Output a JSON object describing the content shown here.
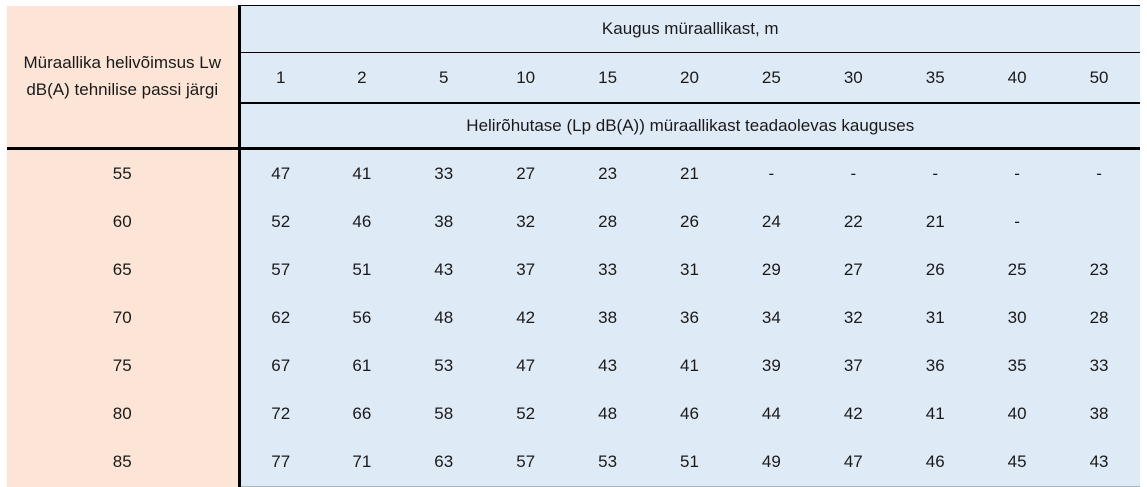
{
  "colors": {
    "left_column_bg": "#fce4d6",
    "data_area_bg": "#deeaf6",
    "border": "#000000",
    "text": "#1a1a1a"
  },
  "chart_data": {
    "type": "table",
    "corner_header": "Müraallika helivõimsus Lw dB(A) tehnilise passi järgi",
    "group_header": "Kaugus müraallikast, m",
    "columns": [
      "1",
      "2",
      "5",
      "10",
      "15",
      "20",
      "25",
      "30",
      "35",
      "40",
      "50"
    ],
    "sub_header": "Helirõhutase (Lp dB(A)) müraallikast teadaolevas kauguses",
    "row_labels": [
      "55",
      "60",
      "65",
      "70",
      "75",
      "80",
      "85"
    ],
    "rows": [
      [
        47,
        41,
        33,
        27,
        23,
        21,
        "-",
        "-",
        "-",
        "-",
        "-"
      ],
      [
        52,
        46,
        38,
        32,
        28,
        26,
        24,
        22,
        21,
        "-",
        ""
      ],
      [
        57,
        51,
        43,
        37,
        33,
        31,
        29,
        27,
        26,
        25,
        23
      ],
      [
        62,
        56,
        48,
        42,
        38,
        36,
        34,
        32,
        31,
        30,
        28
      ],
      [
        67,
        61,
        53,
        47,
        43,
        41,
        39,
        37,
        36,
        35,
        33
      ],
      [
        72,
        66,
        58,
        52,
        48,
        46,
        44,
        42,
        41,
        40,
        38
      ],
      [
        77,
        71,
        63,
        57,
        53,
        51,
        49,
        47,
        46,
        45,
        43
      ]
    ]
  }
}
